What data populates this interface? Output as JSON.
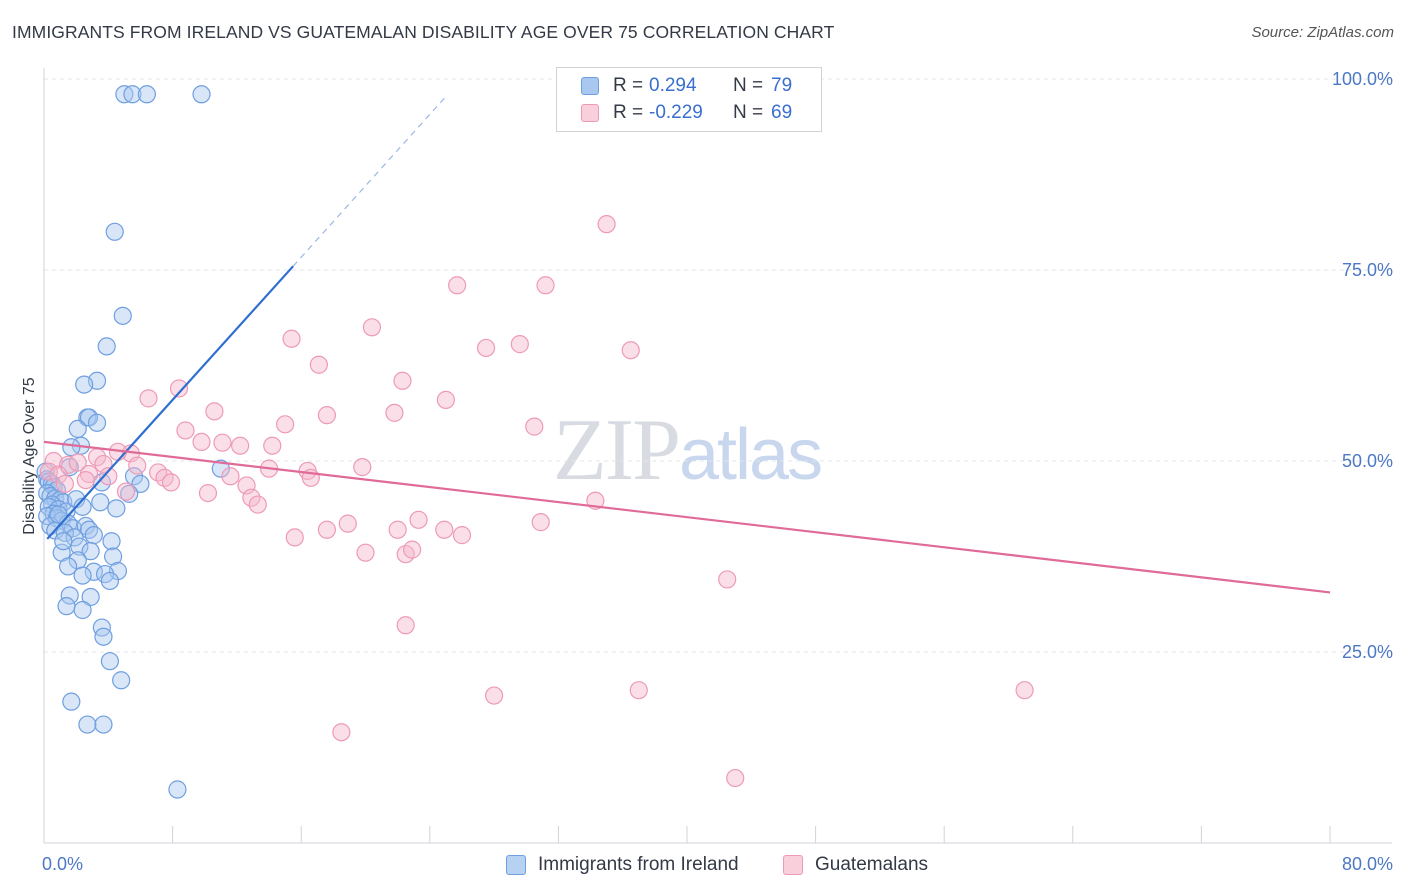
{
  "header": {
    "title": "IMMIGRANTS FROM IRELAND VS GUATEMALAN DISABILITY AGE OVER 75 CORRELATION CHART",
    "source": "Source: ZipAtlas.com"
  },
  "watermark": {
    "zip": "ZIP",
    "atlas": "atlas"
  },
  "legend": {
    "rows": [
      {
        "r_label": "R =",
        "r_value": "0.294",
        "n_label": "N =",
        "n_value": "79"
      },
      {
        "r_label": "R =",
        "r_value": "-0.229",
        "n_label": "N =",
        "n_value": "69"
      }
    ]
  },
  "colors": {
    "blue_fill": "#a9c8f0",
    "blue_stroke": "#6f9fe0",
    "blue_line": "#2f6fd0",
    "pink_fill": "#f5b8cb",
    "pink_stroke": "#ee9ab6",
    "pink_line": "#e06a98",
    "grid": "#e3e6ea",
    "axis_tick_text": "#4d78c4"
  },
  "chart_data": {
    "type": "scatter",
    "title": "IMMIGRANTS FROM IRELAND VS GUATEMALAN DISABILITY AGE OVER 75 CORRELATION CHART",
    "xlabel": "",
    "ylabel": "Disability Age Over 75",
    "xlim": [
      0,
      80
    ],
    "ylim": [
      0,
      103
    ],
    "x_ticks": [
      0,
      80
    ],
    "x_tick_labels": [
      "0.0%",
      "80.0%"
    ],
    "y_ticks": [
      25,
      50,
      75,
      100
    ],
    "y_tick_labels": [
      "25.0%",
      "50.0%",
      "75.0%",
      "100.0%"
    ],
    "grid": true,
    "series": [
      {
        "name": "Immigrants from Ireland",
        "color": "blue",
        "R": 0.294,
        "N": 79,
        "trend": {
          "x0": 0.2,
          "y0": 39.8,
          "x1": 15.5,
          "y1": 75.5,
          "dash_to_x": 25.0,
          "dash_to_y": 97.7
        },
        "points": [
          [
            5.0,
            98.0
          ],
          [
            5.5,
            98.0
          ],
          [
            6.4,
            98.0
          ],
          [
            9.8,
            98.0
          ],
          [
            4.4,
            80.0
          ],
          [
            4.9,
            69.0
          ],
          [
            3.9,
            65.0
          ],
          [
            3.3,
            60.5
          ],
          [
            2.5,
            60.0
          ],
          [
            2.7,
            55.7
          ],
          [
            2.8,
            55.7
          ],
          [
            3.3,
            55.0
          ],
          [
            2.1,
            54.2
          ],
          [
            2.3,
            52.0
          ],
          [
            1.7,
            51.8
          ],
          [
            11.0,
            49.0
          ],
          [
            5.6,
            48.0
          ],
          [
            3.6,
            47.2
          ],
          [
            6.0,
            47.0
          ],
          [
            5.3,
            45.7
          ],
          [
            0.1,
            48.6
          ],
          [
            0.2,
            47.6
          ],
          [
            0.3,
            47.3
          ],
          [
            0.5,
            47.0
          ],
          [
            0.6,
            46.6
          ],
          [
            0.8,
            46.2
          ],
          [
            0.2,
            45.8
          ],
          [
            0.4,
            45.4
          ],
          [
            0.7,
            45.1
          ],
          [
            1.0,
            44.9
          ],
          [
            1.2,
            44.6
          ],
          [
            0.5,
            44.3
          ],
          [
            0.3,
            44.0
          ],
          [
            0.9,
            43.7
          ],
          [
            1.4,
            43.4
          ],
          [
            0.6,
            43.1
          ],
          [
            0.2,
            42.8
          ],
          [
            0.8,
            42.5
          ],
          [
            1.1,
            42.2
          ],
          [
            1.5,
            41.8
          ],
          [
            0.4,
            41.5
          ],
          [
            1.8,
            41.2
          ],
          [
            0.7,
            40.9
          ],
          [
            1.3,
            40.6
          ],
          [
            2.0,
            45.0
          ],
          [
            2.4,
            44.0
          ],
          [
            2.6,
            41.5
          ],
          [
            3.5,
            44.6
          ],
          [
            4.5,
            43.8
          ],
          [
            1.6,
            49.2
          ],
          [
            2.8,
            41.0
          ],
          [
            3.1,
            40.3
          ],
          [
            4.2,
            39.5
          ],
          [
            1.9,
            40.0
          ],
          [
            2.2,
            38.8
          ],
          [
            1.1,
            38.0
          ],
          [
            2.9,
            38.2
          ],
          [
            4.3,
            37.5
          ],
          [
            2.1,
            37.0
          ],
          [
            1.5,
            36.2
          ],
          [
            3.1,
            35.5
          ],
          [
            4.6,
            35.6
          ],
          [
            2.4,
            35.0
          ],
          [
            3.8,
            35.2
          ],
          [
            4.1,
            34.3
          ],
          [
            1.6,
            32.4
          ],
          [
            2.9,
            32.2
          ],
          [
            1.4,
            31.0
          ],
          [
            2.4,
            30.5
          ],
          [
            3.6,
            28.2
          ],
          [
            3.7,
            27.0
          ],
          [
            4.1,
            23.8
          ],
          [
            4.8,
            21.3
          ],
          [
            1.7,
            18.5
          ],
          [
            2.7,
            15.5
          ],
          [
            3.7,
            15.5
          ],
          [
            8.3,
            7.0
          ],
          [
            0.9,
            43.0
          ],
          [
            1.2,
            39.5
          ]
        ]
      },
      {
        "name": "Guatemalans",
        "color": "pink",
        "R": -0.229,
        "N": 69,
        "trend": {
          "x0": 0,
          "y0": 52.5,
          "x1": 80,
          "y1": 32.8
        },
        "points": [
          [
            35.0,
            81.0
          ],
          [
            25.7,
            73.0
          ],
          [
            31.2,
            73.0
          ],
          [
            15.4,
            66.0
          ],
          [
            20.4,
            67.5
          ],
          [
            27.5,
            64.8
          ],
          [
            29.6,
            65.3
          ],
          [
            36.5,
            64.5
          ],
          [
            17.1,
            62.6
          ],
          [
            22.3,
            60.5
          ],
          [
            8.4,
            59.5
          ],
          [
            6.5,
            58.2
          ],
          [
            25.0,
            58.0
          ],
          [
            10.6,
            56.5
          ],
          [
            21.8,
            56.3
          ],
          [
            17.6,
            56.0
          ],
          [
            15.0,
            54.8
          ],
          [
            30.5,
            54.5
          ],
          [
            8.8,
            54.0
          ],
          [
            9.8,
            52.5
          ],
          [
            11.1,
            52.4
          ],
          [
            12.2,
            52.0
          ],
          [
            14.2,
            52.0
          ],
          [
            5.4,
            51.0
          ],
          [
            4.6,
            51.2
          ],
          [
            3.3,
            50.5
          ],
          [
            0.6,
            50.0
          ],
          [
            1.5,
            49.5
          ],
          [
            2.1,
            49.8
          ],
          [
            3.7,
            49.6
          ],
          [
            5.8,
            49.4
          ],
          [
            14.0,
            49.0
          ],
          [
            16.4,
            48.7
          ],
          [
            19.8,
            49.2
          ],
          [
            0.3,
            48.6
          ],
          [
            0.9,
            48.2
          ],
          [
            2.8,
            48.3
          ],
          [
            7.1,
            48.5
          ],
          [
            7.5,
            47.8
          ],
          [
            11.6,
            48.0
          ],
          [
            2.6,
            47.5
          ],
          [
            7.9,
            47.2
          ],
          [
            12.6,
            46.8
          ],
          [
            16.6,
            47.8
          ],
          [
            1.3,
            47.0
          ],
          [
            5.1,
            46.0
          ],
          [
            10.2,
            45.8
          ],
          [
            12.9,
            45.2
          ],
          [
            13.3,
            44.3
          ],
          [
            34.3,
            44.8
          ],
          [
            23.3,
            42.3
          ],
          [
            30.9,
            42.0
          ],
          [
            18.9,
            41.8
          ],
          [
            17.6,
            41.0
          ],
          [
            22.0,
            41.0
          ],
          [
            24.9,
            41.0
          ],
          [
            26.0,
            40.3
          ],
          [
            15.6,
            40.0
          ],
          [
            20.0,
            38.0
          ],
          [
            22.5,
            37.8
          ],
          [
            22.9,
            38.4
          ],
          [
            42.5,
            34.5
          ],
          [
            22.5,
            28.5
          ],
          [
            37.0,
            20.0
          ],
          [
            28.0,
            19.3
          ],
          [
            61.0,
            20.0
          ],
          [
            18.5,
            14.5
          ],
          [
            43.0,
            8.5
          ],
          [
            4.0,
            48.0
          ]
        ]
      }
    ]
  },
  "bottom_legend": [
    {
      "label": "Immigrants from Ireland"
    },
    {
      "label": "Guatemalans"
    }
  ]
}
